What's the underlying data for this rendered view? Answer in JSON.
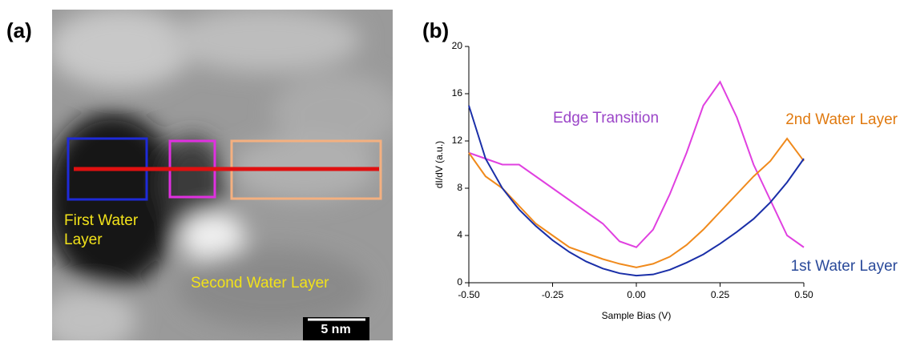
{
  "panel_labels": [
    "(a)",
    "(b)"
  ],
  "image": {
    "annotations": [
      "First Water\nLayer",
      "Second Water Layer"
    ],
    "scale_bar": "5 nm"
  },
  "chart_data": {
    "type": "line",
    "x_label": "Sample Bias (V)",
    "y_label": "dI/dV (a.u.)",
    "x": [
      -0.5,
      -0.45,
      -0.4,
      -0.35,
      -0.3,
      -0.25,
      -0.2,
      -0.15,
      -0.1,
      -0.05,
      0,
      0.05,
      0.1,
      0.15,
      0.2,
      0.25,
      0.3,
      0.35,
      0.4,
      0.45,
      0.5
    ],
    "series": [
      {
        "name": "Edge Transition",
        "color": "#e040e0",
        "label_color": "#9b45c8",
        "values": [
          11,
          10.5,
          10,
          10,
          9,
          8,
          7,
          6,
          5,
          3.5,
          3,
          4.5,
          7.5,
          11,
          15,
          17,
          14,
          10,
          7,
          4,
          3
        ]
      },
      {
        "name": "2nd Water Layer",
        "color": "#f08a1c",
        "label_color": "#e07a10",
        "values": [
          11,
          9,
          8,
          6.5,
          5,
          4,
          3,
          2.5,
          2,
          1.6,
          1.3,
          1.6,
          2.2,
          3.2,
          4.5,
          6,
          7.5,
          9,
          10.3,
          12.2,
          10.3
        ]
      },
      {
        "name": "1st Water Layer",
        "color": "#1a2fa8",
        "label_color": "#2a4a9a",
        "values": [
          15,
          10.5,
          8,
          6.2,
          4.8,
          3.6,
          2.6,
          1.8,
          1.2,
          0.8,
          0.6,
          0.7,
          1.1,
          1.7,
          2.4,
          3.3,
          4.3,
          5.4,
          6.8,
          8.5,
          10.5
        ]
      }
    ],
    "xlim": [
      -0.5,
      0.5
    ],
    "xticks": [
      {
        "value": -0.5,
        "label": "-0.50"
      },
      {
        "value": -0.25,
        "label": "-0.25"
      },
      {
        "value": 0,
        "label": "0.00"
      },
      {
        "value": 0.25,
        "label": "0.25"
      },
      {
        "value": 0.5,
        "label": "0.50"
      }
    ],
    "ylim": [
      0,
      20
    ],
    "yticks": [
      0,
      4,
      8,
      12,
      16,
      20
    ]
  }
}
